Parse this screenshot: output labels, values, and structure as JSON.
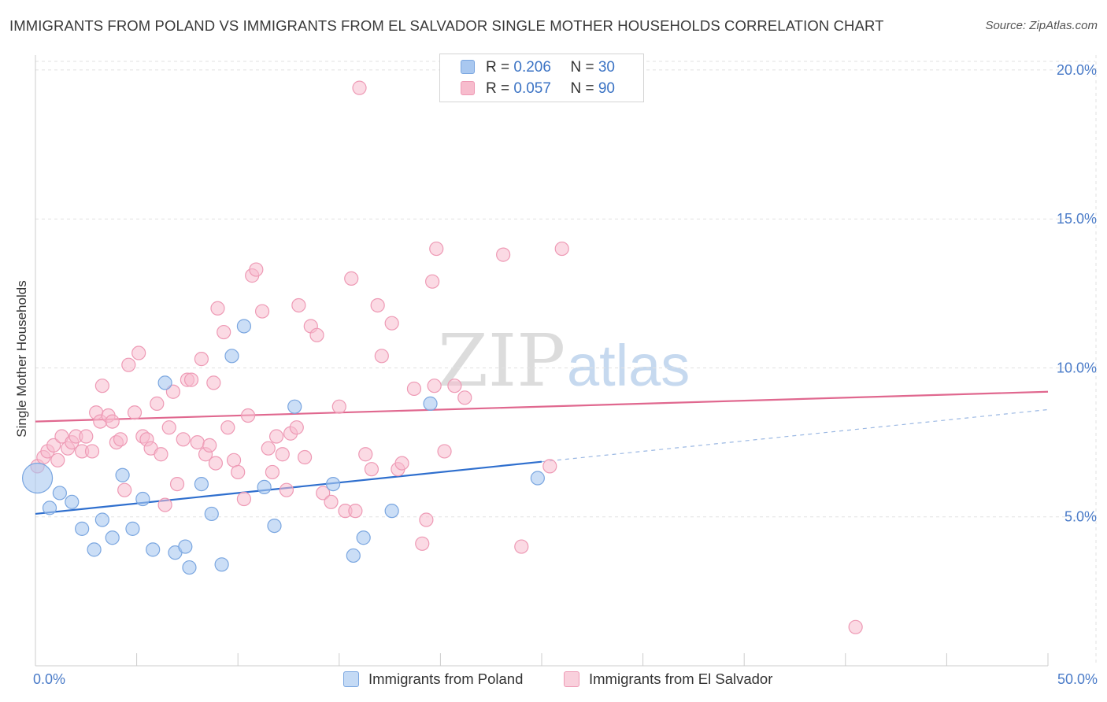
{
  "title": "IMMIGRANTS FROM POLAND VS IMMIGRANTS FROM EL SALVADOR SINGLE MOTHER HOUSEHOLDS CORRELATION CHART",
  "source": "Source: ZipAtlas.com",
  "watermark": {
    "zip": "ZIP",
    "atlas": "atlas"
  },
  "legend": {
    "poland": {
      "r_label": "R = ",
      "r_value": "0.206",
      "n_label": "N = ",
      "n_value": "30"
    },
    "elsalvador": {
      "r_label": "R = ",
      "r_value": "0.057",
      "n_label": "N = ",
      "n_value": "90"
    }
  },
  "bottom_legend": {
    "poland": "Immigrants from Poland",
    "elsalvador": "Immigrants from El Salvador"
  },
  "chart_data": {
    "type": "scatter",
    "title": "IMMIGRANTS FROM POLAND VS IMMIGRANTS FROM EL SALVADOR SINGLE MOTHER HOUSEHOLDS CORRELATION CHART",
    "xlabel": "",
    "ylabel": "Single Mother Households",
    "xlim": [
      0,
      50
    ],
    "ylim": [
      0,
      20.5
    ],
    "x_tick_labels": [
      "0.0%",
      "50.0%"
    ],
    "y_ticks": [
      5,
      10,
      15,
      20
    ],
    "y_tick_labels": [
      "5.0%",
      "10.0%",
      "15.0%",
      "20.0%"
    ],
    "grid": true,
    "colors": {
      "poland_fill": "#a9c8f0",
      "poland_stroke": "#7aa6e0",
      "poland_line": "#2f6fce",
      "elsalvador_fill": "#f7bccd",
      "elsalvador_stroke": "#ee9ab5",
      "elsalvador_line": "#e0688f",
      "tick_text": "#4a7bc8",
      "grid": "#e2e2e2"
    },
    "series": [
      {
        "name": "Immigrants from Poland",
        "points": [
          [
            0.1,
            6.3
          ],
          [
            0.7,
            5.3
          ],
          [
            1.2,
            5.8
          ],
          [
            1.8,
            5.5
          ],
          [
            2.3,
            4.6
          ],
          [
            2.9,
            3.9
          ],
          [
            3.3,
            4.9
          ],
          [
            3.8,
            4.3
          ],
          [
            4.3,
            6.4
          ],
          [
            4.8,
            4.6
          ],
          [
            5.3,
            5.6
          ],
          [
            5.8,
            3.9
          ],
          [
            6.4,
            9.5
          ],
          [
            6.9,
            3.8
          ],
          [
            7.4,
            4.0
          ],
          [
            7.6,
            3.3
          ],
          [
            8.2,
            6.1
          ],
          [
            8.7,
            5.1
          ],
          [
            9.2,
            3.4
          ],
          [
            9.7,
            10.4
          ],
          [
            10.3,
            11.4
          ],
          [
            11.3,
            6.0
          ],
          [
            11.8,
            4.7
          ],
          [
            12.8,
            8.7
          ],
          [
            14.7,
            6.1
          ],
          [
            15.7,
            3.7
          ],
          [
            16.2,
            4.3
          ],
          [
            17.6,
            5.2
          ],
          [
            19.5,
            8.8
          ],
          [
            24.8,
            6.3
          ]
        ],
        "trend": {
          "x": [
            0,
            25
          ],
          "y": [
            5.1,
            6.85
          ]
        },
        "trend_dashed": {
          "x": [
            25,
            50
          ],
          "y": [
            6.85,
            8.6
          ]
        }
      },
      {
        "name": "Immigrants from El Salvador",
        "points": [
          [
            0.1,
            6.7
          ],
          [
            0.4,
            7.0
          ],
          [
            0.6,
            7.2
          ],
          [
            0.9,
            7.4
          ],
          [
            1.1,
            6.9
          ],
          [
            1.3,
            7.7
          ],
          [
            1.6,
            7.3
          ],
          [
            1.8,
            7.5
          ],
          [
            2.0,
            7.7
          ],
          [
            2.3,
            7.2
          ],
          [
            2.5,
            7.7
          ],
          [
            2.8,
            7.2
          ],
          [
            3.0,
            8.5
          ],
          [
            3.2,
            8.2
          ],
          [
            3.3,
            9.4
          ],
          [
            3.6,
            8.4
          ],
          [
            3.8,
            8.2
          ],
          [
            4.0,
            7.5
          ],
          [
            4.2,
            7.6
          ],
          [
            4.4,
            5.9
          ],
          [
            4.6,
            10.1
          ],
          [
            4.9,
            8.5
          ],
          [
            5.1,
            10.5
          ],
          [
            5.3,
            7.7
          ],
          [
            5.5,
            7.6
          ],
          [
            5.7,
            7.3
          ],
          [
            6.0,
            8.8
          ],
          [
            6.2,
            7.1
          ],
          [
            6.4,
            5.4
          ],
          [
            6.6,
            8.0
          ],
          [
            6.8,
            9.2
          ],
          [
            7.0,
            6.1
          ],
          [
            7.3,
            7.6
          ],
          [
            7.5,
            9.6
          ],
          [
            7.7,
            9.6
          ],
          [
            8.0,
            7.5
          ],
          [
            8.2,
            10.3
          ],
          [
            8.4,
            7.1
          ],
          [
            8.6,
            7.4
          ],
          [
            8.8,
            9.5
          ],
          [
            9.0,
            12.0
          ],
          [
            9.3,
            11.2
          ],
          [
            9.5,
            8.0
          ],
          [
            9.8,
            6.9
          ],
          [
            10.0,
            6.5
          ],
          [
            10.3,
            5.6
          ],
          [
            10.5,
            8.4
          ],
          [
            10.7,
            13.1
          ],
          [
            10.9,
            13.3
          ],
          [
            11.2,
            11.9
          ],
          [
            11.5,
            7.3
          ],
          [
            11.7,
            6.5
          ],
          [
            11.9,
            7.7
          ],
          [
            12.2,
            7.1
          ],
          [
            12.4,
            5.9
          ],
          [
            12.6,
            7.8
          ],
          [
            12.9,
            8.0
          ],
          [
            13.0,
            12.1
          ],
          [
            13.3,
            7.0
          ],
          [
            13.6,
            11.4
          ],
          [
            13.9,
            11.1
          ],
          [
            14.2,
            5.8
          ],
          [
            14.6,
            5.5
          ],
          [
            15.0,
            8.7
          ],
          [
            15.3,
            5.2
          ],
          [
            15.6,
            13.0
          ],
          [
            15.8,
            5.2
          ],
          [
            16.0,
            19.4
          ],
          [
            16.3,
            7.1
          ],
          [
            16.6,
            6.6
          ],
          [
            16.9,
            12.1
          ],
          [
            17.1,
            10.4
          ],
          [
            17.6,
            11.5
          ],
          [
            17.9,
            6.6
          ],
          [
            18.1,
            6.8
          ],
          [
            18.7,
            9.3
          ],
          [
            19.1,
            4.1
          ],
          [
            19.3,
            4.9
          ],
          [
            19.6,
            12.9
          ],
          [
            19.8,
            14.0
          ],
          [
            20.2,
            7.2
          ],
          [
            20.7,
            9.4
          ],
          [
            21.2,
            9.0
          ],
          [
            23.1,
            13.8
          ],
          [
            24.0,
            4.0
          ],
          [
            25.4,
            6.7
          ],
          [
            26.0,
            14.0
          ],
          [
            40.5,
            1.3
          ],
          [
            19.7,
            9.4
          ],
          [
            8.9,
            6.8
          ]
        ],
        "trend": {
          "x": [
            0,
            50
          ],
          "y": [
            8.2,
            9.2
          ]
        }
      }
    ]
  }
}
